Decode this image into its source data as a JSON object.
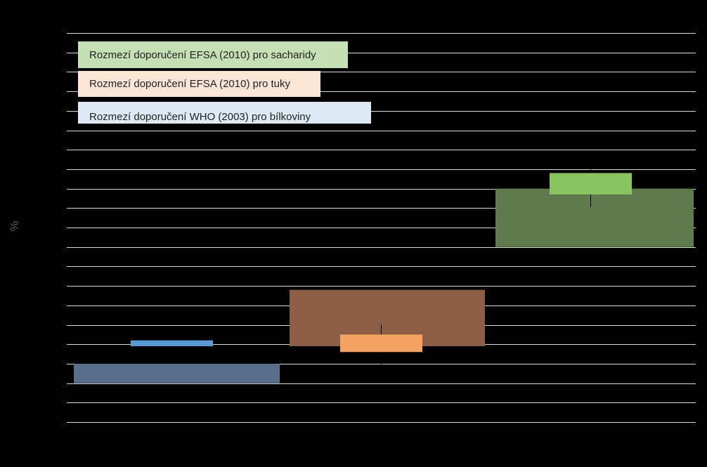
{
  "chart_data": {
    "type": "bar",
    "ylabel": "%",
    "ylim": [
      0,
      20
    ],
    "grid": true,
    "gridlines": 20,
    "legend": {
      "position": "top-left",
      "entries": [
        {
          "label": "Rozmezí doporučení EFSA (2010) pro sacharidy",
          "color": "#c5e0b4"
        },
        {
          "label": "Rozmezí doporučení  EFSA (2010) pro tuky",
          "color": "#fbe5d6"
        },
        {
          "label": "Rozmezí doporučení WHO (2003) pro bílkoviny",
          "color": "#deebf7"
        }
      ]
    },
    "ranges": [
      {
        "name": "protein",
        "low": 2.0,
        "high": 3.0,
        "color": "#5a6f8a"
      },
      {
        "name": "fat",
        "low": 3.9,
        "high": 6.8,
        "color": "#8b5e45"
      },
      {
        "name": "carbohydrate",
        "low": 9.0,
        "high": 12.0,
        "color": "#5f7a4c"
      }
    ],
    "markers": [
      {
        "name": "protein",
        "low": 3.9,
        "high": 4.2,
        "color": "#5b9bd5"
      },
      {
        "name": "fat",
        "low": 3.6,
        "high": 4.5,
        "color": "#f4a261"
      },
      {
        "name": "carbohydrate",
        "low": 11.7,
        "high": 12.8,
        "color": "#8bc561"
      }
    ]
  },
  "colors": {
    "background": "#000000",
    "gridline": "#d9d9d9"
  }
}
